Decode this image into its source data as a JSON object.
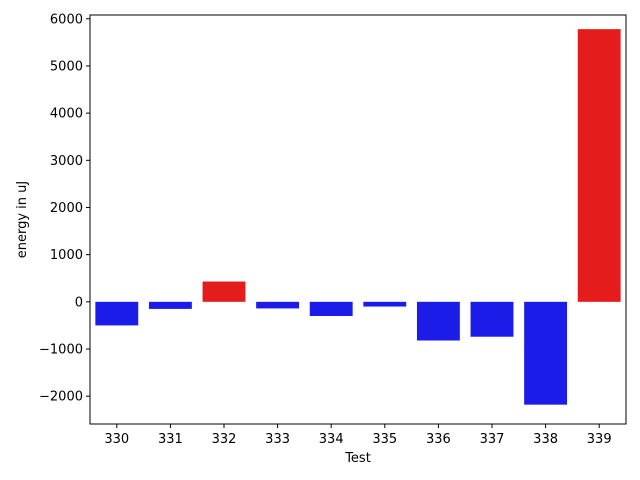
{
  "chart_data": {
    "type": "bar",
    "title": "",
    "xlabel": "Test",
    "ylabel": "energy in uJ",
    "categories": [
      "330",
      "331",
      "332",
      "333",
      "334",
      "335",
      "336",
      "337",
      "338",
      "339"
    ],
    "values": [
      -500,
      -150,
      430,
      -140,
      -300,
      -100,
      -820,
      -740,
      -2180,
      5780
    ],
    "bar_colors": [
      "#1c1ce8",
      "#1c1ce8",
      "#e41c1c",
      "#1c1ce8",
      "#1c1ce8",
      "#1c1ce8",
      "#1c1ce8",
      "#1c1ce8",
      "#1c1ce8",
      "#e41c1c"
    ],
    "ylim": [
      -2590,
      6080
    ],
    "yticks": [
      -2000,
      -1000,
      0,
      1000,
      2000,
      3000,
      4000,
      5000,
      6000
    ],
    "ytick_labels": [
      "−2000",
      "−1000",
      "0",
      "1000",
      "2000",
      "3000",
      "4000",
      "5000",
      "6000"
    ],
    "grid": false,
    "legend": "none"
  }
}
